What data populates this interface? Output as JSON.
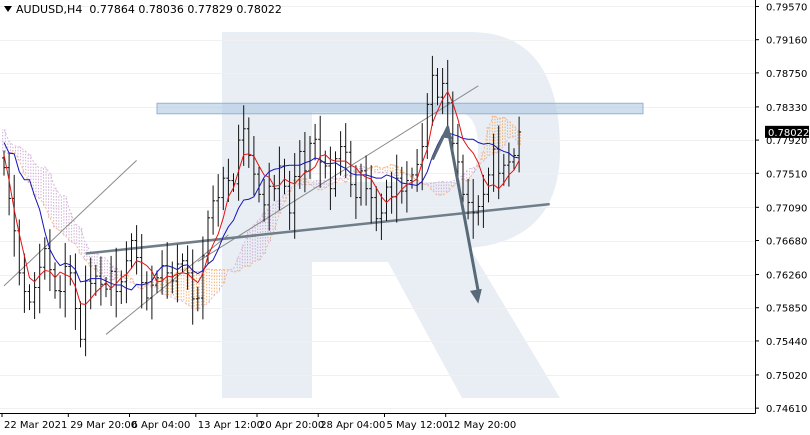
{
  "header": {
    "symbol": "AUDUSD,H4",
    "open": "0.77864",
    "high": "0.78036",
    "low": "0.77829",
    "close": "0.78022"
  },
  "chart_data": {
    "type": "candlestick",
    "y_ticks": [
      "0.79570",
      "0.79160",
      "0.78750",
      "0.78330",
      "0.77920",
      "0.77510",
      "0.77090",
      "0.76680",
      "0.76260",
      "0.75850",
      "0.75440",
      "0.75020",
      "0.74610"
    ],
    "x_ticks": [
      "22 Mar 2021",
      "29 Mar 20:00",
      "6 Apr 04:00",
      "13 Apr 12:00",
      "20 Apr 20:00",
      "28 Apr 04:00",
      "5 May 12:00",
      "12 May 20:00"
    ],
    "current_price": "0.78022",
    "ylim": [
      0.7455,
      0.7965
    ],
    "n_bars": 102,
    "closes": [
      0.7758,
      0.772,
      0.768,
      0.7628,
      0.7605,
      0.7592,
      0.761,
      0.7635,
      0.7658,
      0.7632,
      0.7606,
      0.7605,
      0.7636,
      0.7628,
      0.7584,
      0.7546,
      0.7618,
      0.7615,
      0.7624,
      0.7614,
      0.7608,
      0.763,
      0.7605,
      0.7617,
      0.7643,
      0.7668,
      0.7647,
      0.7616,
      0.7597,
      0.7613,
      0.7622,
      0.7637,
      0.7628,
      0.7618,
      0.7639,
      0.7643,
      0.7628,
      0.7596,
      0.7597,
      0.7649,
      0.7696,
      0.7717,
      0.7721,
      0.7745,
      0.7742,
      0.7738,
      0.7792,
      0.7806,
      0.7773,
      0.775,
      0.7725,
      0.7712,
      0.7735,
      0.7732,
      0.776,
      0.7735,
      0.7702,
      0.7747,
      0.7778,
      0.7754,
      0.7788,
      0.7793,
      0.7765,
      0.776,
      0.7732,
      0.7769,
      0.7784,
      0.7777,
      0.7737,
      0.7721,
      0.7754,
      0.7732,
      0.7721,
      0.7695,
      0.7702,
      0.7734,
      0.7722,
      0.7745,
      0.7729,
      0.7742,
      0.7749,
      0.7762,
      0.7784,
      0.7836,
      0.7872,
      0.7845,
      0.7862,
      0.7838,
      0.7788,
      0.7765,
      0.7725,
      0.7715,
      0.7702,
      0.771,
      0.7725,
      0.7749,
      0.7781,
      0.7751,
      0.7761,
      0.7765,
      0.7773,
      0.7802
    ],
    "tenkan": [
      0.7774,
      0.7742,
      0.7706,
      0.7676,
      0.7649,
      0.7622,
      0.7617,
      0.7625,
      0.7631,
      0.763,
      0.7622,
      0.7629,
      0.7626,
      0.7623,
      0.7611,
      0.759,
      0.7589,
      0.7596,
      0.7604,
      0.761,
      0.7616,
      0.7609,
      0.7615,
      0.7622,
      0.7626,
      0.7634,
      0.7643,
      0.7641,
      0.7637,
      0.763,
      0.7617,
      0.7618,
      0.7624,
      0.7623,
      0.7627,
      0.7628,
      0.7627,
      0.7621,
      0.7616,
      0.7627,
      0.7649,
      0.7663,
      0.7676,
      0.7696,
      0.7722,
      0.7733,
      0.7754,
      0.7774,
      0.7775,
      0.7772,
      0.776,
      0.7749,
      0.7746,
      0.7735,
      0.7736,
      0.7744,
      0.774,
      0.7738,
      0.7745,
      0.7752,
      0.7754,
      0.7759,
      0.7772,
      0.7774,
      0.7768,
      0.7766,
      0.7766,
      0.7766,
      0.7761,
      0.7758,
      0.775,
      0.7746,
      0.7744,
      0.7733,
      0.7722,
      0.7715,
      0.7721,
      0.7723,
      0.7731,
      0.7737,
      0.774,
      0.7744,
      0.7764,
      0.7781,
      0.7813,
      0.7828,
      0.7842,
      0.7852,
      0.7838,
      0.7818,
      0.7793,
      0.7783,
      0.7776,
      0.7764,
      0.7745,
      0.7735,
      0.7737,
      0.7732,
      0.7739,
      0.7749,
      0.7755,
      0.7767
    ],
    "kijun": [
      0.7789,
      0.7776,
      0.7775,
      0.7753,
      0.7743,
      0.7743,
      0.7723,
      0.7706,
      0.7679,
      0.7657,
      0.7645,
      0.7637,
      0.764,
      0.7638,
      0.7632,
      0.7617,
      0.7618,
      0.7621,
      0.7621,
      0.7621,
      0.7618,
      0.7615,
      0.7613,
      0.7613,
      0.7609,
      0.7607,
      0.7614,
      0.7613,
      0.7615,
      0.7618,
      0.7629,
      0.7636,
      0.7637,
      0.7635,
      0.7632,
      0.7637,
      0.7638,
      0.7631,
      0.7627,
      0.7631,
      0.7639,
      0.7644,
      0.7657,
      0.7673,
      0.7685,
      0.7693,
      0.7708,
      0.7718,
      0.7719,
      0.7722,
      0.7734,
      0.7746,
      0.7753,
      0.7756,
      0.7757,
      0.776,
      0.7761,
      0.7761,
      0.7761,
      0.7764,
      0.7766,
      0.777,
      0.7768,
      0.7763,
      0.7763,
      0.7764,
      0.776,
      0.7757,
      0.7751,
      0.7749,
      0.7749,
      0.7749,
      0.7747,
      0.7745,
      0.7745,
      0.7749,
      0.7747,
      0.7744,
      0.7739,
      0.7738,
      0.7737,
      0.7736,
      0.7741,
      0.7753,
      0.7772,
      0.7786,
      0.7798,
      0.7801,
      0.7799,
      0.7797,
      0.7794,
      0.7793,
      0.7793,
      0.7789,
      0.7787,
      0.7788,
      0.7786,
      0.7781,
      0.7778,
      0.7776,
      0.7771,
      0.777
    ],
    "senkou_a": [
      0.7778,
      0.7775,
      0.7778,
      0.7767,
      0.7751,
      0.7739,
      0.7724,
      0.772,
      0.7711,
      0.7696,
      0.7684,
      0.768,
      0.7674,
      0.7667,
      0.7664,
      0.7652,
      0.7644,
      0.7636,
      0.7632,
      0.7627,
      0.762,
      0.7619,
      0.7621,
      0.7626,
      0.7626,
      0.7621,
      0.7611,
      0.7608,
      0.7613,
      0.7617,
      0.762,
      0.7622,
      0.7617,
      0.7624,
      0.7629,
      0.7633,
      0.7635,
      0.7629,
      0.763,
      0.7627,
      0.7633,
      0.7632,
      0.7632,
      0.7632,
      0.7632,
      0.7629,
      0.763,
      0.7636,
      0.7636,
      0.7642,
      0.7644,
      0.7652,
      0.7667,
      0.7681,
      0.7701,
      0.7716,
      0.7728,
      0.7743,
      0.7743,
      0.7745,
      0.7738,
      0.7733,
      0.773,
      0.7733,
      0.7737,
      0.7739,
      0.7744,
      0.774,
      0.7747,
      0.7752,
      0.7752,
      0.7754,
      0.7759,
      0.776,
      0.7757,
      0.7759,
      0.7762,
      0.776,
      0.7753,
      0.775,
      0.7746,
      0.7743,
      0.7738,
      0.7737,
      0.773,
      0.7724,
      0.7724,
      0.7728,
      0.7735,
      0.7741,
      0.7743,
      0.7741,
      0.7752,
      0.7759,
      0.7777,
      0.7808,
      0.7822,
      0.7819,
      0.782,
      0.7815,
      0.7809,
      0.7803
    ],
    "senkou_b": [
      0.7805,
      0.779,
      0.7785,
      0.7784,
      0.7779,
      0.7774,
      0.7763,
      0.7757,
      0.7759,
      0.7751,
      0.7733,
      0.7724,
      0.7723,
      0.7703,
      0.7688,
      0.7684,
      0.7664,
      0.7654,
      0.7653,
      0.7648,
      0.7646,
      0.7637,
      0.7634,
      0.7626,
      0.7619,
      0.7616,
      0.7614,
      0.7611,
      0.7615,
      0.761,
      0.7611,
      0.7603,
      0.7599,
      0.7598,
      0.7595,
      0.7593,
      0.7589,
      0.7584,
      0.7583,
      0.7586,
      0.7591,
      0.7599,
      0.7605,
      0.7615,
      0.7632,
      0.7633,
      0.7648,
      0.7663,
      0.7679,
      0.7687,
      0.7693,
      0.7702,
      0.7708,
      0.7714,
      0.7718,
      0.7725,
      0.773,
      0.7736,
      0.7737,
      0.7737,
      0.7737,
      0.7742,
      0.7742,
      0.7742,
      0.7744,
      0.7745,
      0.7745,
      0.7749,
      0.775,
      0.7757,
      0.776,
      0.7758,
      0.7755,
      0.7752,
      0.7752,
      0.7752,
      0.775,
      0.7748,
      0.775,
      0.775,
      0.7748,
      0.7742,
      0.7738,
      0.7738,
      0.7739,
      0.774,
      0.7741,
      0.774,
      0.7741,
      0.7745,
      0.7748,
      0.7756,
      0.7758,
      0.7761,
      0.7766,
      0.7773,
      0.7775,
      0.7777,
      0.7785,
      0.7795,
      0.7796,
      0.7786
    ],
    "resistance_zone": [
      0.78245,
      0.78375
    ],
    "upper_channel": {
      "from": [
        38,
        0.7642
      ],
      "to": [
        93,
        0.7859
      ]
    },
    "lower_channel": {
      "from": [
        20,
        0.7552
      ],
      "to": [
        44,
        0.7675
      ]
    },
    "arrow_channel": {
      "from": [
        0,
        0.7612
      ],
      "to": [
        26,
        0.7767
      ]
    },
    "support_line": {
      "from": [
        16,
        0.7652
      ],
      "to": [
        107,
        0.7713
      ]
    },
    "forecast_arrow": {
      "from": [
        [
          84,
          0.7768
        ],
        [
          87,
          0.7808
        ]
      ],
      "to": [
        93,
        0.759
      ]
    }
  }
}
